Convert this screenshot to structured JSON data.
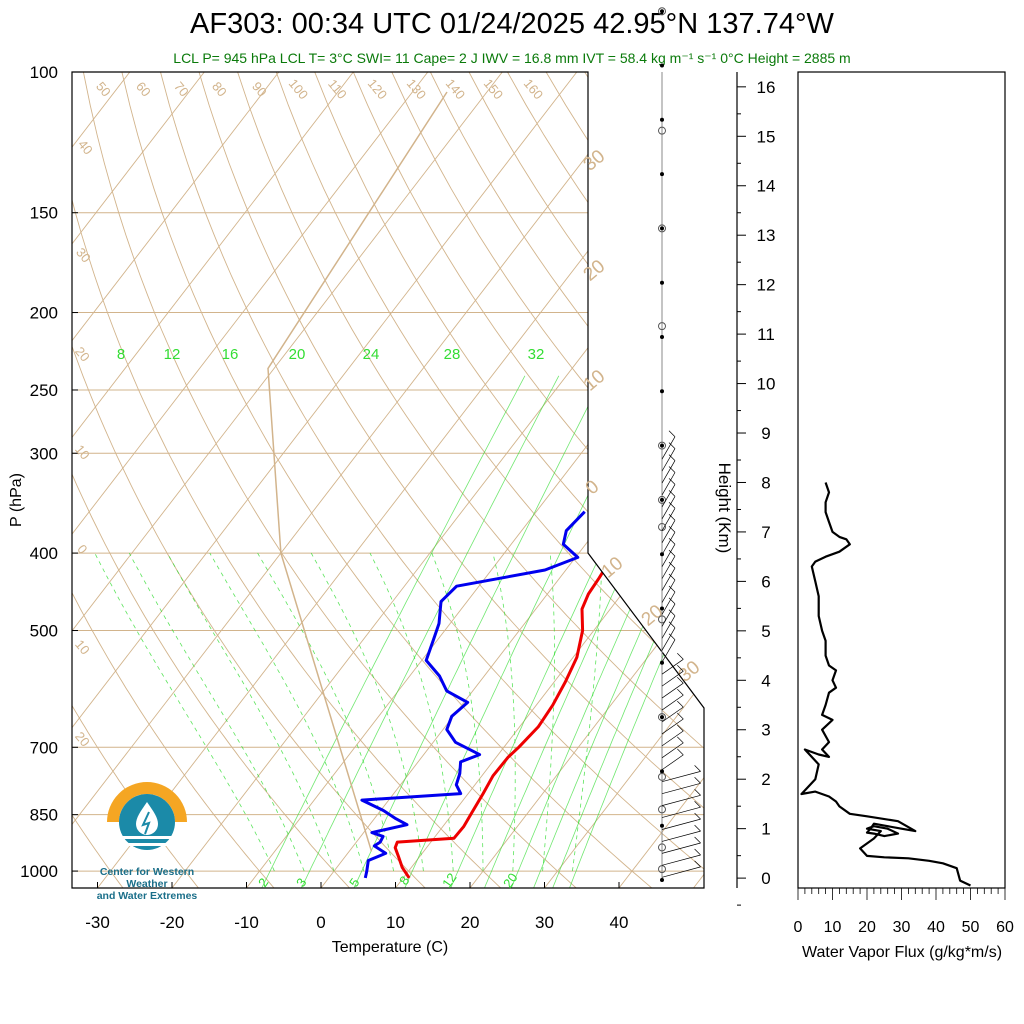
{
  "header": {
    "title": "AF303: 00:34 UTC 01/24/2025  42.95°N 137.74°W",
    "subtitle": "LCL P= 945 hPa  LCL T= 3°C  SWI= 11  Cape= 2 J  IWV = 16.8 mm  IVT = 58.4 kg m⁻¹ s⁻¹  0°C Height = 2885 m"
  },
  "logo": {
    "line1": "Center for Western Weather",
    "line2": "and Water Extremes"
  },
  "colors": {
    "temperature": "#ee0000",
    "dewpoint": "#0000ee",
    "mixing_ratio": "#33dd33",
    "adiabat": "#d2b48c",
    "flux": "#000000"
  },
  "chart_data": [
    {
      "type": "line",
      "name": "skew-t",
      "xlabel": "Temperature (C)",
      "ylabel": "P (hPa)",
      "x_ticks": [
        "-30",
        "-20",
        "-10",
        "0",
        "10",
        "20",
        "30",
        "40"
      ],
      "y_ticks": [
        "100",
        "150",
        "200",
        "250",
        "300",
        "400",
        "500",
        "700",
        "850",
        "1000"
      ],
      "dry_adiabat_labels": [
        "50",
        "60",
        "70",
        "80",
        "90",
        "100",
        "110",
        "120",
        "130",
        "140",
        "150",
        "160",
        "40",
        "30",
        "20",
        "10",
        "0",
        "10",
        "20"
      ],
      "right_labels": [
        "30",
        "20",
        "10",
        "0",
        "10",
        "20",
        "30"
      ],
      "mixing_ratio_labels_top": [
        "8",
        "12",
        "16",
        "20",
        "24",
        "28",
        "32"
      ],
      "mixing_ratio_labels_bottom": [
        "2",
        "3",
        "5",
        "8",
        "12",
        "20"
      ],
      "series": [
        {
          "name": "Temperature",
          "values": [
            [
              1020,
              10.8
            ],
            [
              990,
              8.8
            ],
            [
              960,
              7.2
            ],
            [
              935,
              5.8
            ],
            [
              920,
              5.5
            ],
            [
              910,
              12.7
            ],
            [
              880,
              12.8
            ],
            [
              850,
              12.5
            ],
            [
              800,
              12.0
            ],
            [
              760,
              11.5
            ],
            [
              720,
              11.6
            ],
            [
              700,
              12.0
            ],
            [
              660,
              12.5
            ],
            [
              620,
              12.2
            ],
            [
              580,
              11.5
            ],
            [
              540,
              10.5
            ],
            [
              500,
              8.5
            ],
            [
              470,
              6.2
            ],
            [
              450,
              5.5
            ],
            [
              430,
              5.3
            ],
            [
              400,
              4.8
            ],
            [
              370,
              2.6
            ],
            [
              350,
              1.2
            ]
          ]
        },
        {
          "name": "Dewpoint",
          "values": [
            [
              1020,
              4.9
            ],
            [
              1000,
              4.4
            ],
            [
              970,
              3.5
            ],
            [
              950,
              5.1
            ],
            [
              930,
              2.8
            ],
            [
              920,
              3.2
            ],
            [
              905,
              3.0
            ],
            [
              895,
              1.1
            ],
            [
              875,
              5.0
            ],
            [
              860,
              2.9
            ],
            [
              840,
              0.4
            ],
            [
              815,
              -3.6
            ],
            [
              800,
              9.0
            ],
            [
              780,
              7.5
            ],
            [
              755,
              6.8
            ],
            [
              730,
              5.7
            ],
            [
              715,
              7.5
            ],
            [
              690,
              3.0
            ],
            [
              665,
              0.5
            ],
            [
              640,
              -0.2
            ],
            [
              615,
              0.5
            ],
            [
              595,
              -3.5
            ],
            [
              570,
              -6.0
            ],
            [
              545,
              -9.4
            ],
            [
              515,
              -10.5
            ],
            [
              490,
              -11.5
            ],
            [
              460,
              -13.5
            ],
            [
              440,
              -13.0
            ],
            [
              420,
              -2.8
            ],
            [
              405,
              0.3
            ],
            [
              390,
              -3.0
            ],
            [
              375,
              -4.0
            ],
            [
              355,
              -3.5
            ]
          ]
        }
      ],
      "wind_heights_km": [
        0.1,
        0.3,
        0.6,
        1.0,
        1.5,
        2.0,
        2.5,
        3.0,
        3.5,
        4.0,
        4.5,
        5.0,
        5.5,
        6.0,
        6.5,
        7.0,
        7.5,
        8.0
      ]
    },
    {
      "type": "line",
      "name": "water-vapor-flux",
      "xlabel": "Water Vapor Flux (g/kg*m/s)",
      "ylabel": "Height (Km)",
      "x_ticks": [
        "0",
        "10",
        "20",
        "30",
        "40",
        "50",
        "60"
      ],
      "y_ticks": [
        "0",
        "1",
        "2",
        "3",
        "4",
        "5",
        "6",
        "7",
        "8",
        "9",
        "10",
        "11",
        "12",
        "13",
        "14",
        "15",
        "16"
      ],
      "xlim": [
        0,
        60
      ],
      "ylim": [
        -0.2,
        16.3
      ],
      "series": [
        {
          "name": "",
          "values": [
            [
              50,
              -0.15
            ],
            [
              47,
              -0.05
            ],
            [
              46,
              0.2
            ],
            [
              42,
              0.3
            ],
            [
              38,
              0.35
            ],
            [
              32,
              0.4
            ],
            [
              25,
              0.42
            ],
            [
              20,
              0.45
            ],
            [
              18,
              0.6
            ],
            [
              22,
              0.8
            ],
            [
              24,
              0.95
            ],
            [
              20,
              1.0
            ],
            [
              22,
              1.05
            ],
            [
              26,
              1.0
            ],
            [
              29,
              0.9
            ],
            [
              25,
              0.85
            ],
            [
              22,
              0.9
            ],
            [
              20,
              0.92
            ],
            [
              21,
              1.0
            ],
            [
              22,
              1.1
            ],
            [
              30,
              1.0
            ],
            [
              34,
              0.95
            ],
            [
              29,
              1.15
            ],
            [
              20,
              1.25
            ],
            [
              15,
              1.3
            ],
            [
              12,
              1.45
            ],
            [
              11,
              1.55
            ],
            [
              9,
              1.65
            ],
            [
              5,
              1.75
            ],
            [
              1,
              1.7
            ],
            [
              3,
              1.85
            ],
            [
              5,
              2.0
            ],
            [
              6,
              2.3
            ],
            [
              2,
              2.6
            ],
            [
              6,
              2.5
            ],
            [
              9,
              2.45
            ],
            [
              7,
              2.6
            ],
            [
              9,
              2.75
            ],
            [
              7,
              3.0
            ],
            [
              10,
              3.2
            ],
            [
              7,
              3.3
            ],
            [
              8,
              3.5
            ],
            [
              9,
              3.75
            ],
            [
              11,
              3.85
            ],
            [
              10,
              4.0
            ],
            [
              11,
              4.2
            ],
            [
              9,
              4.3
            ],
            [
              8,
              4.5
            ],
            [
              8,
              4.8
            ],
            [
              7,
              5.0
            ],
            [
              6,
              5.3
            ],
            [
              6,
              5.7
            ],
            [
              5,
              6.0
            ],
            [
              4,
              6.3
            ],
            [
              5,
              6.4
            ],
            [
              8,
              6.5
            ],
            [
              12,
              6.6
            ],
            [
              15,
              6.75
            ],
            [
              14,
              6.85
            ],
            [
              12,
              6.9
            ],
            [
              10,
              7.0
            ],
            [
              9,
              7.2
            ],
            [
              8,
              7.4
            ],
            [
              8,
              7.6
            ],
            [
              9,
              7.8
            ],
            [
              8,
              8.0
            ]
          ]
        }
      ]
    }
  ]
}
